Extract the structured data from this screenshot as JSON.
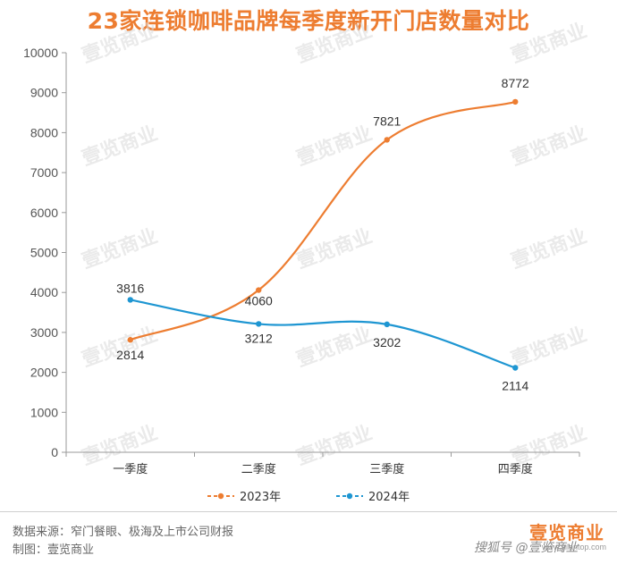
{
  "chart_data": {
    "type": "line",
    "title": "23家连锁咖啡品牌每季度新开门店数量对比",
    "categories": [
      "一季度",
      "二季度",
      "三季度",
      "四季度"
    ],
    "series": [
      {
        "name": "2023年",
        "values": [
          2814,
          4060,
          7821,
          8772
        ],
        "color": "#ED7D31"
      },
      {
        "name": "2024年",
        "values": [
          3816,
          3212,
          3202,
          2114
        ],
        "color": "#1E96D2"
      }
    ],
    "ylim": [
      0,
      10000
    ],
    "yticks": [
      "0",
      "1000",
      "2000",
      "3000",
      "4000",
      "5000",
      "6000",
      "7000",
      "8000",
      "9000",
      "10000"
    ],
    "grid": false,
    "legend": "bottom",
    "smooth": true
  },
  "watermark": "壹览商业",
  "footer": {
    "source": "数据来源：窄门餐眼、极海及上市公司财报",
    "maker": "制图：壹览商业",
    "brand": "壹览商业",
    "brand_url": "www.yilantop.com",
    "credit": "搜狐号 @壹览商业"
  }
}
